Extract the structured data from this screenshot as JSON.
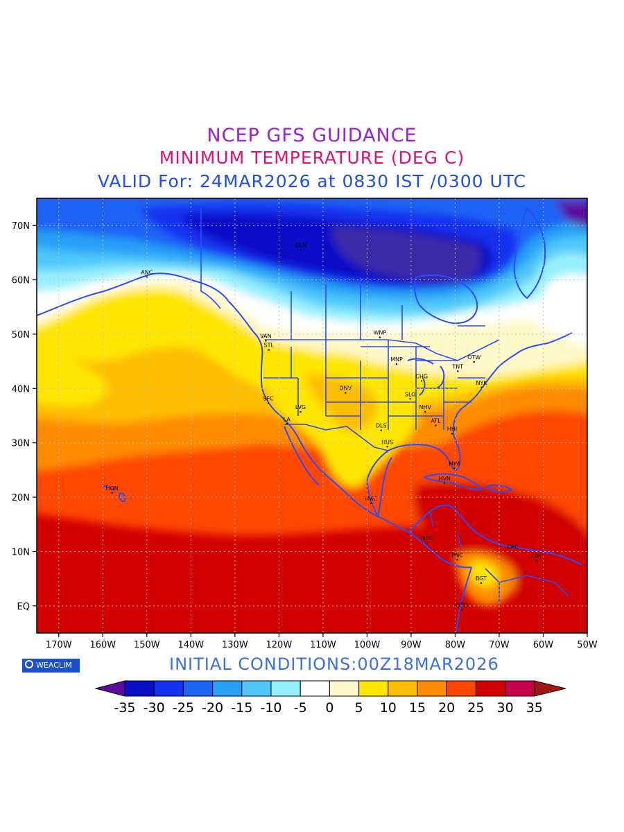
{
  "titles": {
    "line1": "NCEP GFS GUIDANCE",
    "line2": "MINIMUM TEMPERATURE (DEG C)",
    "line3": "VALID For: 24MAR2026 at 0830 IST /0300 UTC"
  },
  "colors": {
    "title1": "#9b1ed8",
    "title2": "#e0107a",
    "title3": "#2050e0",
    "init": "#3b6fe0",
    "borders": "#2a4cff",
    "badge": "#1a4fd0"
  },
  "badge": {
    "text": "WEACLIM"
  },
  "initial_conditions": "INITIAL  CONDITIONS:00Z18MAR2026",
  "axes": {
    "lon_labels": [
      "170W",
      "160W",
      "150W",
      "140W",
      "130W",
      "120W",
      "110W",
      "100W",
      "90W",
      "80W",
      "70W",
      "60W",
      "50W"
    ],
    "lat_labels": [
      "70N",
      "60N",
      "50N",
      "40N",
      "30N",
      "20N",
      "10N",
      "EQ"
    ]
  },
  "colorbar": {
    "labels": [
      "-35",
      "-30",
      "-25",
      "-20",
      "-15",
      "-10",
      "-5",
      "0",
      "5",
      "10",
      "15",
      "20",
      "25",
      "30",
      "35"
    ],
    "colors": [
      "#5a0a9e",
      "#0a10c8",
      "#1432f0",
      "#1e64f5",
      "#28a0f5",
      "#50c8fa",
      "#96f0ff",
      "#ffffff",
      "#fff8c8",
      "#ffe600",
      "#ffbe00",
      "#ff8c00",
      "#ff4600",
      "#d20000",
      "#c8004b",
      "#a01414"
    ]
  },
  "cities": [
    {
      "code": "DLN",
      "lon": -115,
      "lat": 66
    },
    {
      "code": "ANC",
      "lon": -150,
      "lat": 61
    },
    {
      "code": "VAN",
      "lon": -123,
      "lat": 49.3
    },
    {
      "code": "STL",
      "lon": -122.3,
      "lat": 47.6
    },
    {
      "code": "WNP",
      "lon": -97.1,
      "lat": 49.9
    },
    {
      "code": "MNP",
      "lon": -93.3,
      "lat": 45
    },
    {
      "code": "OTW",
      "lon": -75.7,
      "lat": 45.4
    },
    {
      "code": "TNT",
      "lon": -79.4,
      "lat": 43.7
    },
    {
      "code": "CHG",
      "lon": -87.6,
      "lat": 41.9
    },
    {
      "code": "NYK",
      "lon": -74,
      "lat": 40.7
    },
    {
      "code": "DNV",
      "lon": -104.9,
      "lat": 39.7
    },
    {
      "code": "SFC",
      "lon": -122.4,
      "lat": 37.8
    },
    {
      "code": "SLO",
      "lon": -90.2,
      "lat": 38.6
    },
    {
      "code": "LVG",
      "lon": -115.1,
      "lat": 36.2
    },
    {
      "code": "NHV",
      "lon": -86.8,
      "lat": 36.2
    },
    {
      "code": "LA",
      "lon": -118.2,
      "lat": 34
    },
    {
      "code": "ATL",
      "lon": -84.4,
      "lat": 33.7
    },
    {
      "code": "DLS",
      "lon": -96.8,
      "lat": 32.8
    },
    {
      "code": "HHI",
      "lon": -80.7,
      "lat": 32.2
    },
    {
      "code": "HUS",
      "lon": -95.4,
      "lat": 29.8
    },
    {
      "code": "MIM",
      "lon": -80.2,
      "lat": 25.8
    },
    {
      "code": "HVN",
      "lon": -82.4,
      "lat": 23.1
    },
    {
      "code": "HON",
      "lon": -157.9,
      "lat": 21.3
    },
    {
      "code": "MXC",
      "lon": -99.1,
      "lat": 19.4
    },
    {
      "code": "NCG",
      "lon": -86.3,
      "lat": 12.1
    },
    {
      "code": "CRC",
      "lon": -66.9,
      "lat": 10.5
    },
    {
      "code": "PNC",
      "lon": -79.5,
      "lat": 9
    },
    {
      "code": "CRT",
      "lon": -61.5,
      "lat": 8.8
    },
    {
      "code": "BGT",
      "lon": -74.1,
      "lat": 4.7
    },
    {
      "code": "QTO",
      "lon": -78.5,
      "lat": -0.2
    }
  ]
}
